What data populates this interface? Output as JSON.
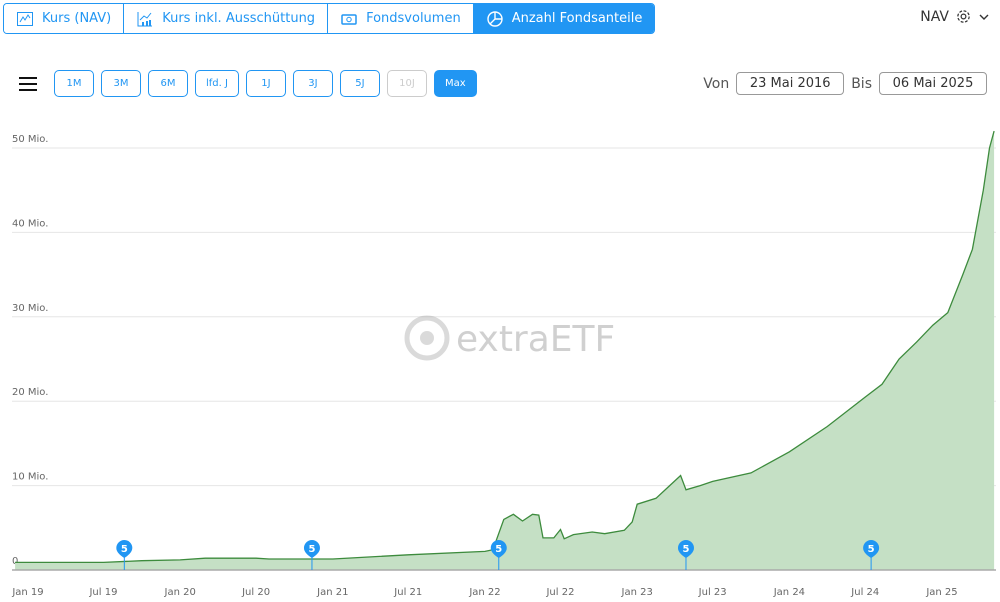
{
  "tabs": [
    {
      "label": "Kurs (NAV)",
      "icon": "line-chart-icon",
      "active": false
    },
    {
      "label": "Kurs inkl. Ausschüttung",
      "icon": "bar-line-chart-icon",
      "active": false
    },
    {
      "label": "Fondsvolumen",
      "icon": "money-icon",
      "active": false
    },
    {
      "label": "Anzahl Fondsanteile",
      "icon": "pie-chart-icon",
      "active": true
    }
  ],
  "price_type": "NAV",
  "ranges": [
    {
      "label": "1M",
      "state": "normal"
    },
    {
      "label": "3M",
      "state": "normal"
    },
    {
      "label": "6M",
      "state": "normal"
    },
    {
      "label": "lfd. J",
      "state": "normal"
    },
    {
      "label": "1J",
      "state": "normal"
    },
    {
      "label": "3J",
      "state": "normal"
    },
    {
      "label": "5J",
      "state": "normal"
    },
    {
      "label": "10J",
      "state": "disabled"
    },
    {
      "label": "Max",
      "state": "active"
    }
  ],
  "date_range": {
    "from_label": "Von",
    "from": "23 Mai 2016",
    "to_label": "Bis",
    "to": "06 Mai 2025"
  },
  "watermark": "extraETF",
  "colors": {
    "accent": "#2196f3",
    "line": "#3d8b3d",
    "area": "#c5e0c5"
  },
  "chart_data": {
    "type": "area",
    "title": "",
    "xlabel": "",
    "ylabel": "",
    "ylim": [
      0,
      50
    ],
    "yticks": [
      {
        "v": 0,
        "label": "0"
      },
      {
        "v": 10,
        "label": "10 Mio."
      },
      {
        "v": 20,
        "label": "20 Mio."
      },
      {
        "v": 30,
        "label": "30 Mio."
      },
      {
        "v": 40,
        "label": "40 Mio."
      },
      {
        "v": 50,
        "label": "50 Mio."
      }
    ],
    "xticks": [
      {
        "d": "2019-01-01",
        "label": "Jan 19"
      },
      {
        "d": "2019-07-01",
        "label": "Jul 19"
      },
      {
        "d": "2020-01-01",
        "label": "Jan 20"
      },
      {
        "d": "2020-07-01",
        "label": "Jul 20"
      },
      {
        "d": "2021-01-01",
        "label": "Jan 21"
      },
      {
        "d": "2021-07-01",
        "label": "Jul 21"
      },
      {
        "d": "2022-01-01",
        "label": "Jan 22"
      },
      {
        "d": "2022-07-01",
        "label": "Jul 22"
      },
      {
        "d": "2023-01-01",
        "label": "Jan 23"
      },
      {
        "d": "2023-07-01",
        "label": "Jul 23"
      },
      {
        "d": "2024-01-01",
        "label": "Jan 24"
      },
      {
        "d": "2024-07-01",
        "label": "Jul 24"
      },
      {
        "d": "2025-01-01",
        "label": "Jan 25"
      }
    ],
    "grid": true,
    "series": [
      {
        "points": [
          [
            "2018-12-01",
            0.9
          ],
          [
            "2019-07-01",
            0.9
          ],
          [
            "2019-10-01",
            1.1
          ],
          [
            "2020-01-01",
            1.2
          ],
          [
            "2020-03-01",
            1.4
          ],
          [
            "2020-07-01",
            1.4
          ],
          [
            "2020-08-01",
            1.3
          ],
          [
            "2021-01-01",
            1.3
          ],
          [
            "2021-07-01",
            1.8
          ],
          [
            "2022-01-01",
            2.2
          ],
          [
            "2022-01-20",
            2.4
          ],
          [
            "2022-02-15",
            6.0
          ],
          [
            "2022-03-10",
            6.6
          ],
          [
            "2022-04-01",
            5.8
          ],
          [
            "2022-04-25",
            6.6
          ],
          [
            "2022-05-10",
            6.5
          ],
          [
            "2022-05-20",
            3.8
          ],
          [
            "2022-06-15",
            3.8
          ],
          [
            "2022-07-01",
            4.8
          ],
          [
            "2022-07-10",
            3.7
          ],
          [
            "2022-08-01",
            4.2
          ],
          [
            "2022-09-15",
            4.5
          ],
          [
            "2022-10-15",
            4.3
          ],
          [
            "2022-12-01",
            4.7
          ],
          [
            "2022-12-20",
            5.7
          ],
          [
            "2023-01-01",
            7.8
          ],
          [
            "2023-02-15",
            8.5
          ],
          [
            "2023-03-20",
            10.0
          ],
          [
            "2023-04-15",
            11.2
          ],
          [
            "2023-04-28",
            9.5
          ],
          [
            "2023-06-01",
            10.0
          ],
          [
            "2023-07-01",
            10.5
          ],
          [
            "2023-10-01",
            11.5
          ],
          [
            "2024-01-01",
            14.0
          ],
          [
            "2024-04-01",
            17.0
          ],
          [
            "2024-07-01",
            20.5
          ],
          [
            "2024-08-10",
            22.0
          ],
          [
            "2024-09-20",
            25.0
          ],
          [
            "2024-11-01",
            27.0
          ],
          [
            "2024-12-10",
            29.0
          ],
          [
            "2025-01-15",
            30.5
          ],
          [
            "2025-02-20",
            35.0
          ],
          [
            "2025-03-15",
            38.0
          ],
          [
            "2025-04-10",
            45.0
          ],
          [
            "2025-04-25",
            50.0
          ],
          [
            "2025-05-06",
            52.0
          ]
        ]
      }
    ],
    "markers": [
      {
        "d": "2019-08-20",
        "label": "5"
      },
      {
        "d": "2020-11-12",
        "label": "5"
      },
      {
        "d": "2022-02-03",
        "label": "5"
      },
      {
        "d": "2023-04-28",
        "label": "5"
      },
      {
        "d": "2024-07-15",
        "label": "5"
      }
    ]
  }
}
